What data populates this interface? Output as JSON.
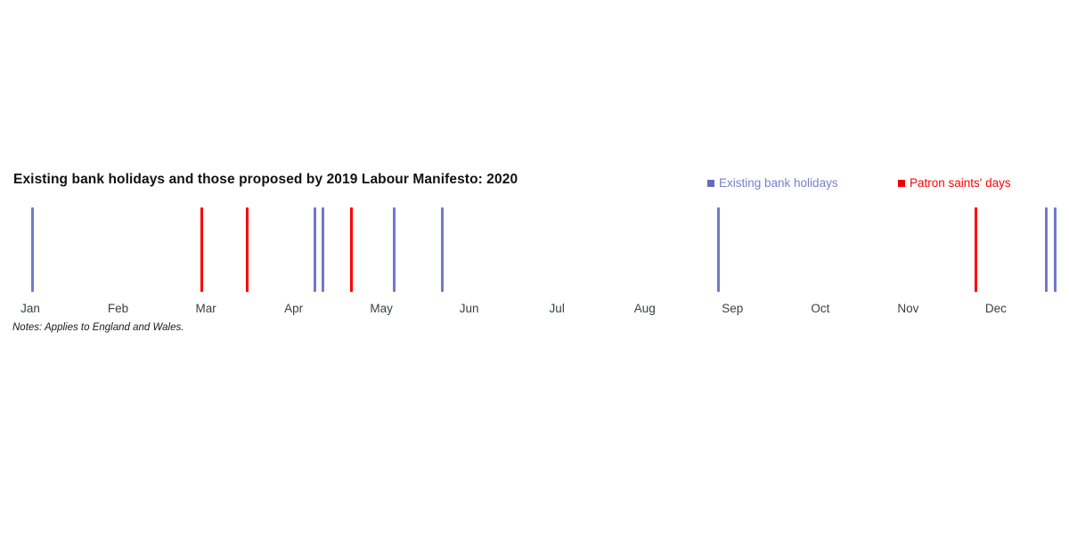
{
  "header": {
    "title": "Existing bank holidays and those proposed by 2019 Labour Manifesto: 2020",
    "title_color": "#111111"
  },
  "legend": {
    "items": [
      {
        "label": "Existing bank holidays",
        "swatch_color": "#666bb8",
        "text_color": "#7a7fca"
      },
      {
        "label": "Patron saints' days",
        "swatch_color": "#f20000",
        "text_color": "#ff0000"
      }
    ]
  },
  "notes": "Notes: Applies to England and Wales.",
  "colors": {
    "existing_line": "#7577c9",
    "saints_line": "#fb0203",
    "month_label": "#3a4049",
    "background": "#ffffff"
  },
  "chart_data": {
    "type": "timeline",
    "title": "Existing bank holidays and those proposed by 2019 Labour Manifesto: 2020",
    "year": 2020,
    "x_axis": {
      "unit": "day_of_year",
      "range": [
        1,
        366
      ],
      "tick_labels": [
        "Jan",
        "Feb",
        "Mar",
        "Apr",
        "May",
        "Jun",
        "Jul",
        "Aug",
        "Sep",
        "Oct",
        "Nov",
        "Dec"
      ],
      "tick_month_start_days": [
        1,
        32,
        61,
        92,
        122,
        153,
        183,
        214,
        245,
        275,
        306,
        336
      ]
    },
    "grid": false,
    "legend_position": "top-right",
    "series": [
      {
        "name": "Existing bank holidays",
        "color": "#7577c9",
        "events": [
          {
            "date": "2020-01-01",
            "day": 1
          },
          {
            "date": "2020-04-10",
            "day": 101
          },
          {
            "date": "2020-04-13",
            "day": 104
          },
          {
            "date": "2020-05-08",
            "day": 129
          },
          {
            "date": "2020-05-25",
            "day": 146
          },
          {
            "date": "2020-08-31",
            "day": 244
          },
          {
            "date": "2020-12-25",
            "day": 360
          },
          {
            "date": "2020-12-28",
            "day": 363
          }
        ]
      },
      {
        "name": "Patron saints' days",
        "color": "#fb0203",
        "events": [
          {
            "date": "2020-03-01",
            "day": 61
          },
          {
            "date": "2020-03-17",
            "day": 77
          },
          {
            "date": "2020-04-23",
            "day": 114
          },
          {
            "date": "2020-11-30",
            "day": 335
          }
        ]
      }
    ]
  }
}
